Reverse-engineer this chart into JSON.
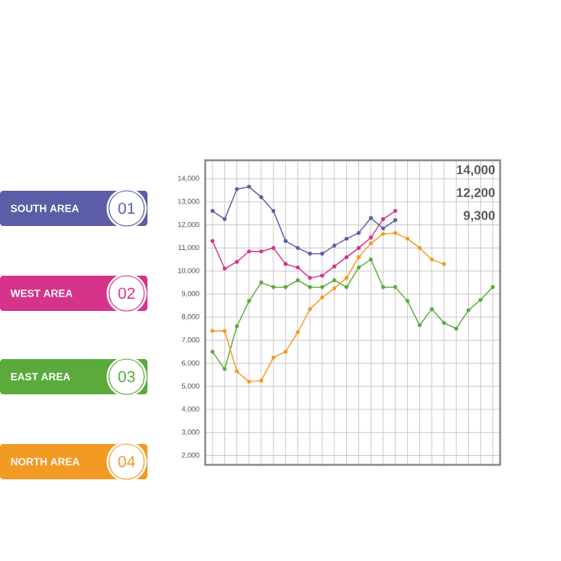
{
  "chart_data": {
    "type": "line",
    "categories": [
      null,
      null,
      null,
      null,
      null,
      null,
      null,
      null,
      null,
      null,
      null,
      null,
      null,
      null,
      null,
      null,
      null,
      null,
      null,
      null,
      null,
      null,
      null,
      null
    ],
    "series": [
      {
        "name": "SOUTH AREA",
        "color": "#5b5ea6",
        "values": [
          12600,
          12250,
          13550,
          13650,
          13200,
          12600,
          11300,
          11000,
          10750,
          10750,
          11100,
          11400,
          11650,
          12300,
          11850,
          12200,
          null,
          null,
          null,
          null,
          null,
          null,
          null,
          null
        ]
      },
      {
        "name": "WEST AREA",
        "color": "#d6338a",
        "values": [
          11300,
          10100,
          10400,
          10850,
          10850,
          11000,
          10300,
          10150,
          9700,
          9800,
          10200,
          10600,
          11000,
          11450,
          12250,
          12600,
          null,
          null,
          null,
          null,
          null,
          null,
          null,
          null
        ]
      },
      {
        "name": "EAST AREA",
        "color": "#5aab3c",
        "values": [
          6500,
          5750,
          7600,
          8700,
          9500,
          9300,
          9300,
          9600,
          9300,
          9300,
          9600,
          9300,
          10150,
          10500,
          9300,
          9300,
          8700,
          7650,
          8350,
          7750,
          7500,
          8300,
          8750,
          9300
        ]
      },
      {
        "name": "NORTH AREA",
        "color": "#f39a24",
        "values": [
          7400,
          7400,
          5650,
          5200,
          5250,
          6250,
          6500,
          7350,
          8350,
          8850,
          9250,
          9700,
          10600,
          11200,
          11600,
          11650,
          11400,
          11000,
          10500,
          10300,
          null,
          null,
          null,
          null
        ]
      }
    ],
    "ylim": [
      1600,
      14800
    ],
    "yticks": [
      {
        "value": 2000,
        "label": "2,000"
      },
      {
        "value": 3000,
        "label": "3,000"
      },
      {
        "value": 4000,
        "label": "4,000"
      },
      {
        "value": 5000,
        "label": "5,000"
      },
      {
        "value": 6000,
        "label": "6,000"
      },
      {
        "value": 7000,
        "label": "7,000"
      },
      {
        "value": 8000,
        "label": "8,000"
      },
      {
        "value": 9000,
        "label": "9,000"
      },
      {
        "value": 10000,
        "label": "10,000"
      },
      {
        "value": 11000,
        "label": "11,000"
      },
      {
        "value": 12000,
        "label": "12,000"
      },
      {
        "value": 13000,
        "label": "13,000"
      },
      {
        "value": 14000,
        "label": "14,000"
      }
    ],
    "tick_labels": "y",
    "grid": true,
    "legend": "left",
    "marker": "circle",
    "annotations": [
      "01",
      "02",
      "03",
      "04",
      "14,000",
      "12,200",
      "9,300"
    ]
  }
}
